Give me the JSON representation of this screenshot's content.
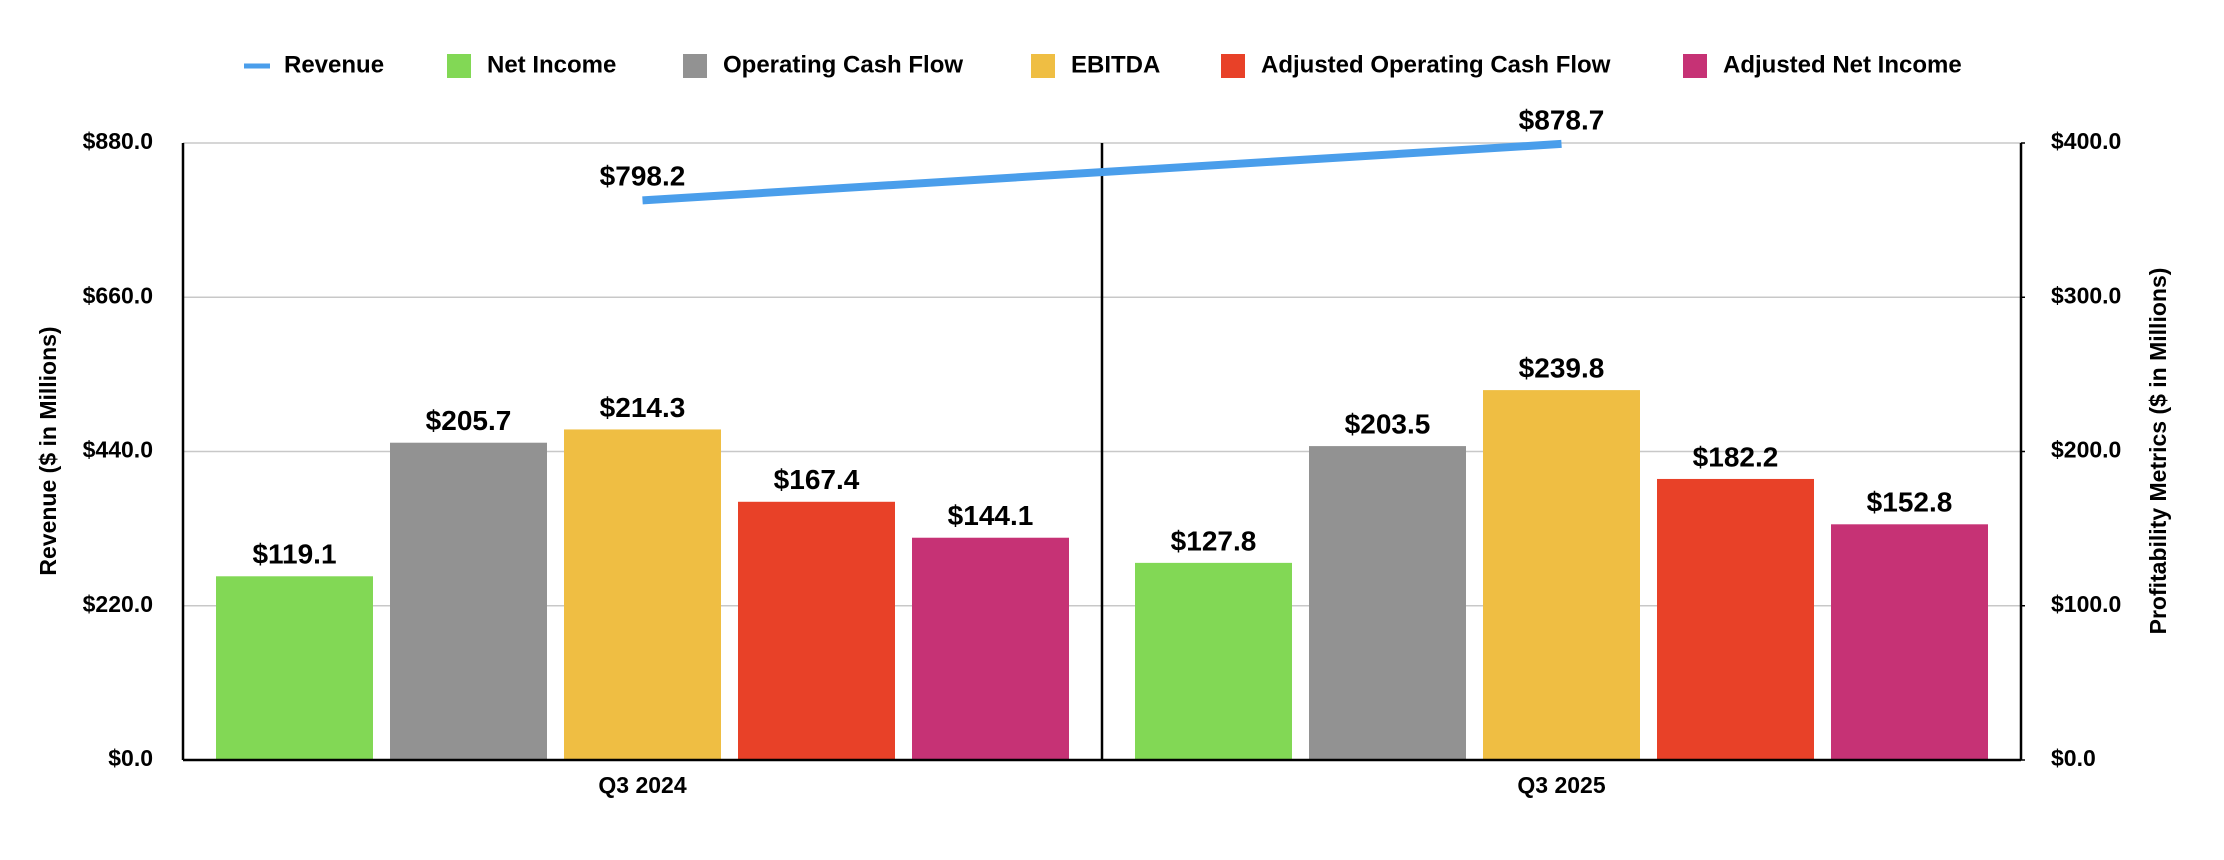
{
  "chart_data": {
    "type": "bar",
    "ylabel": "Revenue ($ in Millions)",
    "y2label": "Profitability Metrics ($ in Millions)",
    "categories": [
      "Q3 2024",
      "Q3 2025"
    ],
    "series": [
      {
        "name": "Revenue",
        "type": "line",
        "color": "#4a9eeb",
        "values": [
          798.2,
          878.7
        ],
        "value_labels": [
          "$798.2",
          "$878.7"
        ]
      },
      {
        "name": "Net Income",
        "axis": "y2",
        "color": "#82d855",
        "values": [
          119.1,
          127.8
        ],
        "value_labels": [
          "$119.1",
          "$127.8"
        ]
      },
      {
        "name": "Operating Cash Flow",
        "axis": "y2",
        "color": "#929292",
        "values": [
          205.7,
          203.5
        ],
        "value_labels": [
          "$205.7",
          "$203.5"
        ]
      },
      {
        "name": "EBITDA",
        "axis": "y2",
        "color": "#efbe43",
        "values": [
          214.3,
          239.8
        ],
        "value_labels": [
          "$214.3",
          "$239.8"
        ]
      },
      {
        "name": "Adjusted Operating Cash Flow",
        "axis": "y2",
        "color": "#e84128",
        "values": [
          167.4,
          182.2
        ],
        "value_labels": [
          "$167.4",
          "$182.2"
        ]
      },
      {
        "name": "Adjusted Net Income",
        "axis": "y2",
        "color": "#c63275",
        "values": [
          144.1,
          152.8
        ],
        "value_labels": [
          "$144.1",
          "$152.8"
        ]
      }
    ],
    "ylim": [
      0,
      880
    ],
    "yticks": [
      {
        "value": 0,
        "label": "$0.0"
      },
      {
        "value": 220,
        "label": "$220.0"
      },
      {
        "value": 440,
        "label": "$440.0"
      },
      {
        "value": 660,
        "label": "$660.0"
      },
      {
        "value": 880,
        "label": "$880.0"
      }
    ],
    "y2lim": [
      0,
      400
    ],
    "y2ticks": [
      {
        "value": 0,
        "label": "$0.0"
      },
      {
        "value": 100,
        "label": "$100.0"
      },
      {
        "value": 200,
        "label": "$200.0"
      },
      {
        "value": 300,
        "label": "$300.0"
      },
      {
        "value": 400,
        "label": "$400.0"
      }
    ],
    "grid": true
  }
}
